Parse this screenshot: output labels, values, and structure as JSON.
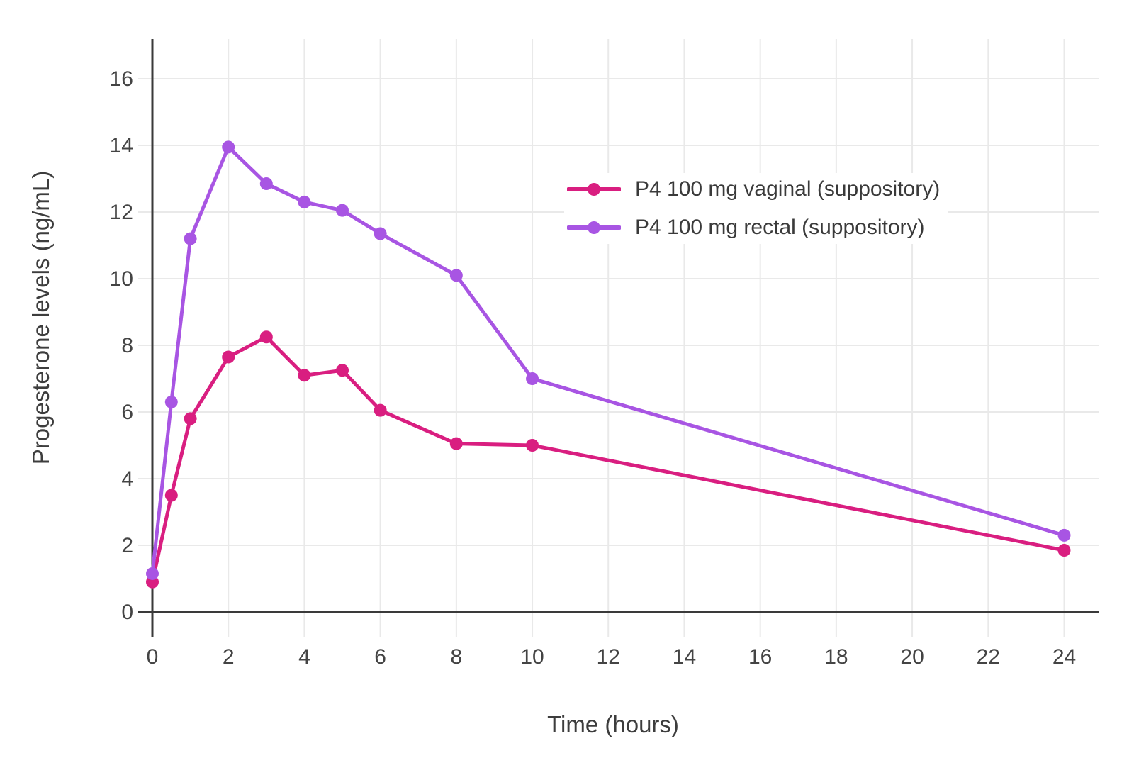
{
  "chart_data": {
    "type": "line",
    "title": "",
    "xlabel": "Time (hours)",
    "ylabel": "Progesterone levels (ng/mL)",
    "x": [
      0,
      0.5,
      1,
      2,
      3,
      4,
      5,
      6,
      8,
      10,
      24
    ],
    "series": [
      {
        "name": "P4 100 mg vaginal (suppository)",
        "color": "#d91e80",
        "values": [
          0.9,
          3.5,
          5.8,
          7.65,
          8.25,
          7.1,
          7.25,
          6.05,
          5.05,
          5.0,
          1.85
        ]
      },
      {
        "name": "P4 100 mg rectal (suppository)",
        "color": "#a855e3",
        "values": [
          1.15,
          6.3,
          11.2,
          13.95,
          12.85,
          12.3,
          12.05,
          11.35,
          10.1,
          7.0,
          2.3
        ]
      }
    ],
    "xlim": [
      0,
      24
    ],
    "ylim": [
      0,
      16
    ],
    "xticks": [
      0,
      2,
      4,
      6,
      8,
      10,
      12,
      14,
      16,
      18,
      20,
      22,
      24
    ],
    "yticks": [
      0,
      2,
      4,
      6,
      8,
      10,
      12,
      14,
      16
    ],
    "grid": true,
    "legend_position": "inside-upper-right"
  },
  "colors": {
    "background": "#ffffff",
    "grid": "#e9e9e9",
    "axis": "#3a3a3a",
    "tick_label": "#444444",
    "axis_title": "#3d3d3d",
    "legend_text": "#3a3a3a"
  }
}
